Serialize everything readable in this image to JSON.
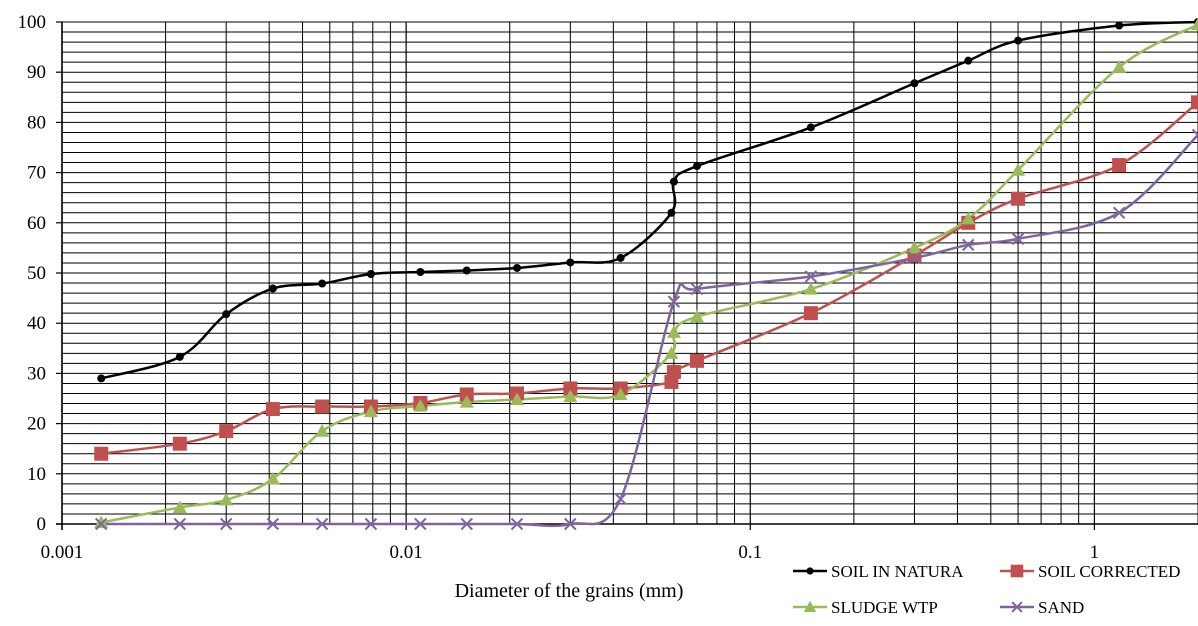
{
  "chart_data": {
    "type": "line",
    "title": "",
    "xlabel": "Diameter of the grains (mm)",
    "ylabel": "",
    "x_scale": "log",
    "xlim": [
      0.001,
      2
    ],
    "ylim": [
      0,
      100
    ],
    "grid": true,
    "legend_position": "bottom-right",
    "x_tick_labels": [
      "0.001",
      "0.01",
      "0.1",
      "1"
    ],
    "y_tick_labels": [
      "0",
      "10",
      "20",
      "30",
      "40",
      "50",
      "60",
      "70",
      "80",
      "90",
      "100"
    ],
    "series": [
      {
        "name": "SOIL IN NATURA",
        "color": "#000000",
        "marker": "circle",
        "points": [
          [
            0.0013,
            29
          ],
          [
            0.0022,
            33.3
          ],
          [
            0.003,
            41.8
          ],
          [
            0.0041,
            46.9
          ],
          [
            0.0057,
            47.9
          ],
          [
            0.0079,
            49.8
          ],
          [
            0.011,
            50.2
          ],
          [
            0.015,
            50.5
          ],
          [
            0.021,
            51
          ],
          [
            0.03,
            52.1
          ],
          [
            0.042,
            53
          ],
          [
            0.059,
            62
          ],
          [
            0.06,
            68.2
          ],
          [
            0.07,
            71.3
          ],
          [
            0.15,
            79
          ],
          [
            0.3,
            87.8
          ],
          [
            0.43,
            92.3
          ],
          [
            0.6,
            96.3
          ],
          [
            1.18,
            99.3
          ],
          [
            2.0,
            100
          ]
        ]
      },
      {
        "name": "SOIL CORRECTED",
        "color": "#c0504d",
        "marker": "square",
        "points": [
          [
            0.0013,
            14
          ],
          [
            0.0022,
            16
          ],
          [
            0.003,
            18.5
          ],
          [
            0.0041,
            22.9
          ],
          [
            0.0057,
            23.4
          ],
          [
            0.0079,
            23.4
          ],
          [
            0.011,
            24.1
          ],
          [
            0.015,
            25.8
          ],
          [
            0.021,
            26
          ],
          [
            0.03,
            27
          ],
          [
            0.042,
            27
          ],
          [
            0.059,
            28.3
          ],
          [
            0.06,
            30.3
          ],
          [
            0.07,
            32.5
          ],
          [
            0.15,
            42
          ],
          [
            0.3,
            53.5
          ],
          [
            0.43,
            60
          ],
          [
            0.6,
            64.8
          ],
          [
            1.18,
            71.5
          ],
          [
            2.0,
            84
          ]
        ]
      },
      {
        "name": "SLUDGE WTP",
        "color": "#9bbb59",
        "marker": "triangle",
        "points": [
          [
            0.0013,
            0.3
          ],
          [
            0.0022,
            3.3
          ],
          [
            0.003,
            4.8
          ],
          [
            0.0041,
            9
          ],
          [
            0.0057,
            18.5
          ],
          [
            0.0079,
            22.4
          ],
          [
            0.011,
            23.5
          ],
          [
            0.015,
            24.3
          ],
          [
            0.021,
            24.8
          ],
          [
            0.03,
            25.4
          ],
          [
            0.042,
            25.8
          ],
          [
            0.059,
            34
          ],
          [
            0.06,
            38.2
          ],
          [
            0.07,
            41.3
          ],
          [
            0.15,
            46.8
          ],
          [
            0.3,
            55
          ],
          [
            0.43,
            60.8
          ],
          [
            0.6,
            70.5
          ],
          [
            1.18,
            91
          ],
          [
            2.0,
            99.5
          ]
        ]
      },
      {
        "name": "SAND",
        "color": "#8064a2",
        "marker": "x",
        "points": [
          [
            0.0013,
            0
          ],
          [
            0.0022,
            0
          ],
          [
            0.003,
            0
          ],
          [
            0.0041,
            0
          ],
          [
            0.0057,
            0
          ],
          [
            0.0079,
            0
          ],
          [
            0.011,
            0
          ],
          [
            0.015,
            0
          ],
          [
            0.021,
            0
          ],
          [
            0.03,
            0
          ],
          [
            0.042,
            5
          ],
          [
            0.06,
            44.3
          ],
          [
            0.07,
            46.8
          ],
          [
            0.15,
            49.3
          ],
          [
            0.3,
            53
          ],
          [
            0.43,
            55.6
          ],
          [
            0.6,
            56.8
          ],
          [
            1.18,
            62
          ],
          [
            2.0,
            77.5
          ]
        ]
      }
    ]
  }
}
